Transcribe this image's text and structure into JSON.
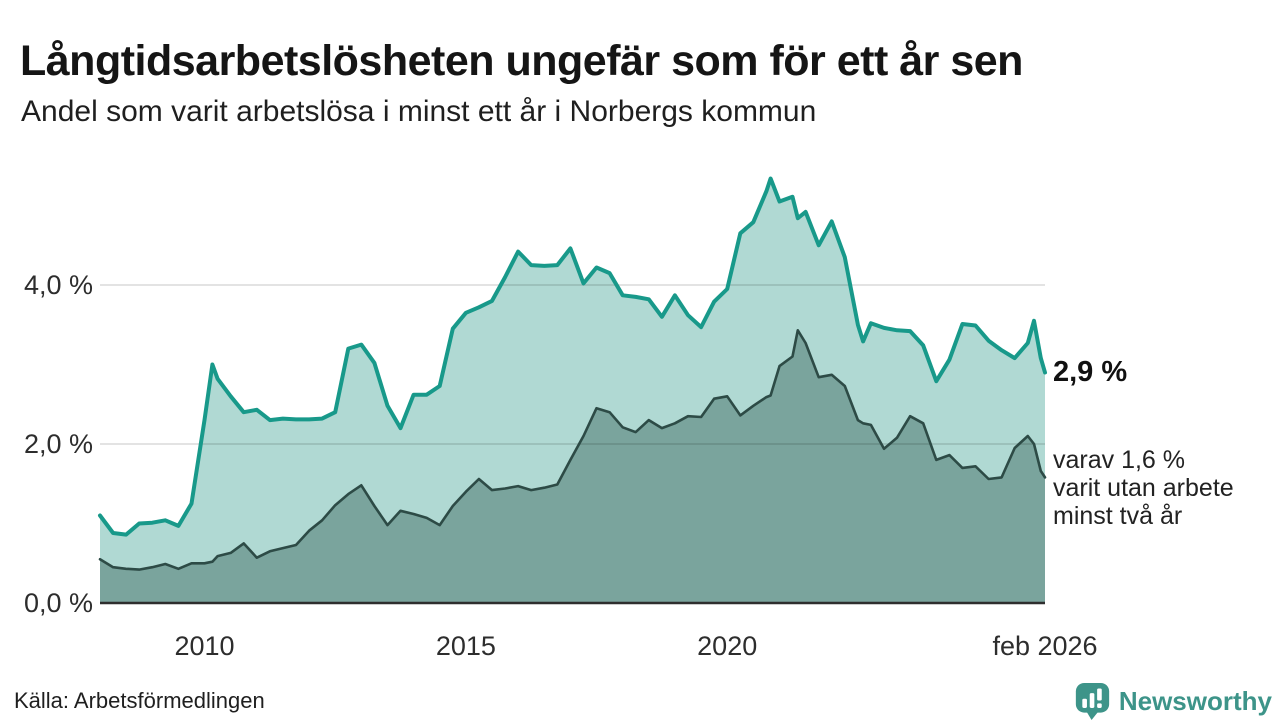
{
  "header": {
    "title": "Långtidsarbetslösheten ungefär som för ett år sen",
    "subtitle": "Andel som varit arbetslösa i minst ett år i Norbergs kommun"
  },
  "chart_data": {
    "type": "area",
    "title": "Långtidsarbetslösheten ungefär som för ett år sen",
    "subtitle": "Andel som varit arbetslösa i minst ett år i Norbergs kommun",
    "unit": "%",
    "grid": true,
    "x_axis": {
      "range": [
        2008.0,
        2026.08
      ],
      "ticks": [
        {
          "label": "2010",
          "year": 2010
        },
        {
          "label": "2015",
          "year": 2015
        },
        {
          "label": "2020",
          "year": 2020
        },
        {
          "label": "feb 2026",
          "year": 2026.08
        }
      ]
    },
    "y_axis": {
      "range": [
        0,
        5.5
      ],
      "ticks": [
        {
          "label": "0,0 %",
          "value": 0
        },
        {
          "label": "2,0 %",
          "value": 2
        },
        {
          "label": "4,0 %",
          "value": 4
        }
      ]
    },
    "series": [
      {
        "name": "Arbetslösa minst ett år",
        "line_color": "#18998a",
        "fill_color": "#b0d9d3",
        "end_value": "2,9 %"
      },
      {
        "name": "Arbetslösa minst två år",
        "line_color": "#2d4b46",
        "fill_color": "#7aa49d",
        "end_value": "1,6 %"
      }
    ],
    "years": [
      2008.0,
      2008.25,
      2008.5,
      2008.75,
      2009.0,
      2009.25,
      2009.5,
      2009.75,
      2010.0,
      2010.15,
      2010.25,
      2010.5,
      2010.75,
      2011.0,
      2011.25,
      2011.5,
      2011.75,
      2012.0,
      2012.25,
      2012.5,
      2012.75,
      2013.0,
      2013.25,
      2013.5,
      2013.75,
      2014.0,
      2014.25,
      2014.5,
      2014.75,
      2015.0,
      2015.25,
      2015.5,
      2015.75,
      2016.0,
      2016.25,
      2016.5,
      2016.75,
      2017.0,
      2017.25,
      2017.5,
      2017.75,
      2018.0,
      2018.25,
      2018.5,
      2018.75,
      2019.0,
      2019.25,
      2019.5,
      2019.75,
      2020.0,
      2020.25,
      2020.5,
      2020.75,
      2020.83,
      2021.0,
      2021.25,
      2021.35,
      2021.5,
      2021.75,
      2022.0,
      2022.25,
      2022.5,
      2022.6,
      2022.75,
      2023.0,
      2023.25,
      2023.5,
      2023.75,
      2024.0,
      2024.25,
      2024.5,
      2024.75,
      2025.0,
      2025.25,
      2025.5,
      2025.75,
      2025.87,
      2026.0,
      2026.08
    ],
    "min_one_year": [
      1.1,
      0.88,
      0.86,
      1.0,
      1.01,
      1.04,
      0.97,
      1.25,
      2.3,
      3.0,
      2.82,
      2.6,
      2.4,
      2.43,
      2.3,
      2.32,
      2.31,
      2.31,
      2.32,
      2.4,
      3.2,
      3.25,
      3.02,
      2.48,
      2.2,
      2.62,
      2.62,
      2.73,
      3.45,
      3.65,
      3.72,
      3.8,
      4.1,
      4.42,
      4.25,
      4.24,
      4.25,
      4.46,
      4.02,
      4.22,
      4.15,
      3.87,
      3.85,
      3.82,
      3.6,
      3.87,
      3.62,
      3.47,
      3.79,
      3.95,
      4.65,
      4.79,
      5.18,
      5.34,
      5.05,
      5.11,
      4.84,
      4.92,
      4.5,
      4.8,
      4.35,
      3.5,
      3.29,
      3.52,
      3.46,
      3.43,
      3.42,
      3.24,
      2.79,
      3.06,
      3.51,
      3.49,
      3.3,
      3.18,
      3.08,
      3.27,
      3.55,
      3.08,
      2.9
    ],
    "min_two_years": [
      0.55,
      0.45,
      0.43,
      0.42,
      0.45,
      0.49,
      0.43,
      0.5,
      0.5,
      0.52,
      0.59,
      0.63,
      0.75,
      0.57,
      0.65,
      0.69,
      0.73,
      0.91,
      1.04,
      1.23,
      1.37,
      1.48,
      1.22,
      0.98,
      1.16,
      1.12,
      1.07,
      0.98,
      1.22,
      1.4,
      1.56,
      1.42,
      1.44,
      1.47,
      1.42,
      1.45,
      1.49,
      1.8,
      2.1,
      2.45,
      2.4,
      2.21,
      2.15,
      2.3,
      2.2,
      2.26,
      2.35,
      2.34,
      2.57,
      2.6,
      2.36,
      2.48,
      2.59,
      2.61,
      2.98,
      3.1,
      3.43,
      3.27,
      2.84,
      2.87,
      2.73,
      2.3,
      2.26,
      2.24,
      1.94,
      2.08,
      2.35,
      2.26,
      1.8,
      1.86,
      1.7,
      1.72,
      1.56,
      1.58,
      1.95,
      2.1,
      2.0,
      1.66,
      1.58
    ],
    "legend_position": "none"
  },
  "annotations": {
    "end_label": "2,9 %",
    "note_lines": [
      "varav 1,6 %",
      "varit utan arbete",
      "minst två år"
    ]
  },
  "footer": {
    "source": "Källa: Arbetsförmedlingen",
    "brand": "Newsworthy"
  },
  "colors": {
    "line_total": "#18998a",
    "fill_total": "#b0d9d3",
    "line_two_years": "#2d4b46",
    "fill_two_years": "#7aa49d",
    "gridline": "rgba(0,0,0,0.11)",
    "baseline": "#2e2e2e",
    "brand_teal": "#3d9489"
  }
}
